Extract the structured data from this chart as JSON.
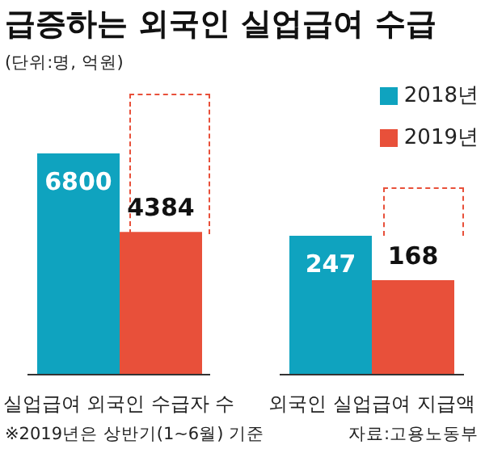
{
  "chart_data": [
    {
      "type": "bar",
      "title": "급증하는 외국인 실업급여 수급",
      "subtitle": "(단위:명, 억원)",
      "categories": [
        "실업급여 외국인 수급자 수"
      ],
      "series": [
        {
          "name": "2018년",
          "color": "#0fa3bf",
          "values": [
            6800
          ]
        },
        {
          "name": "2019년",
          "color": "#e8503a",
          "values": [
            4384
          ]
        }
      ],
      "data_labels": true,
      "legend": "top right",
      "annotations": [
        "※2019년은 상반기(1~6월) 기준"
      ]
    },
    {
      "type": "bar",
      "categories": [
        "외국인 실업급여 지급액"
      ],
      "series": [
        {
          "color": "#0fa3bf",
          "values": [
            247
          ]
        },
        {
          "color": "#e8503a",
          "values": [
            168
          ]
        }
      ],
      "data_labels": true,
      "annotations": [
        "자료:고용노동부"
      ]
    }
  ]
}
